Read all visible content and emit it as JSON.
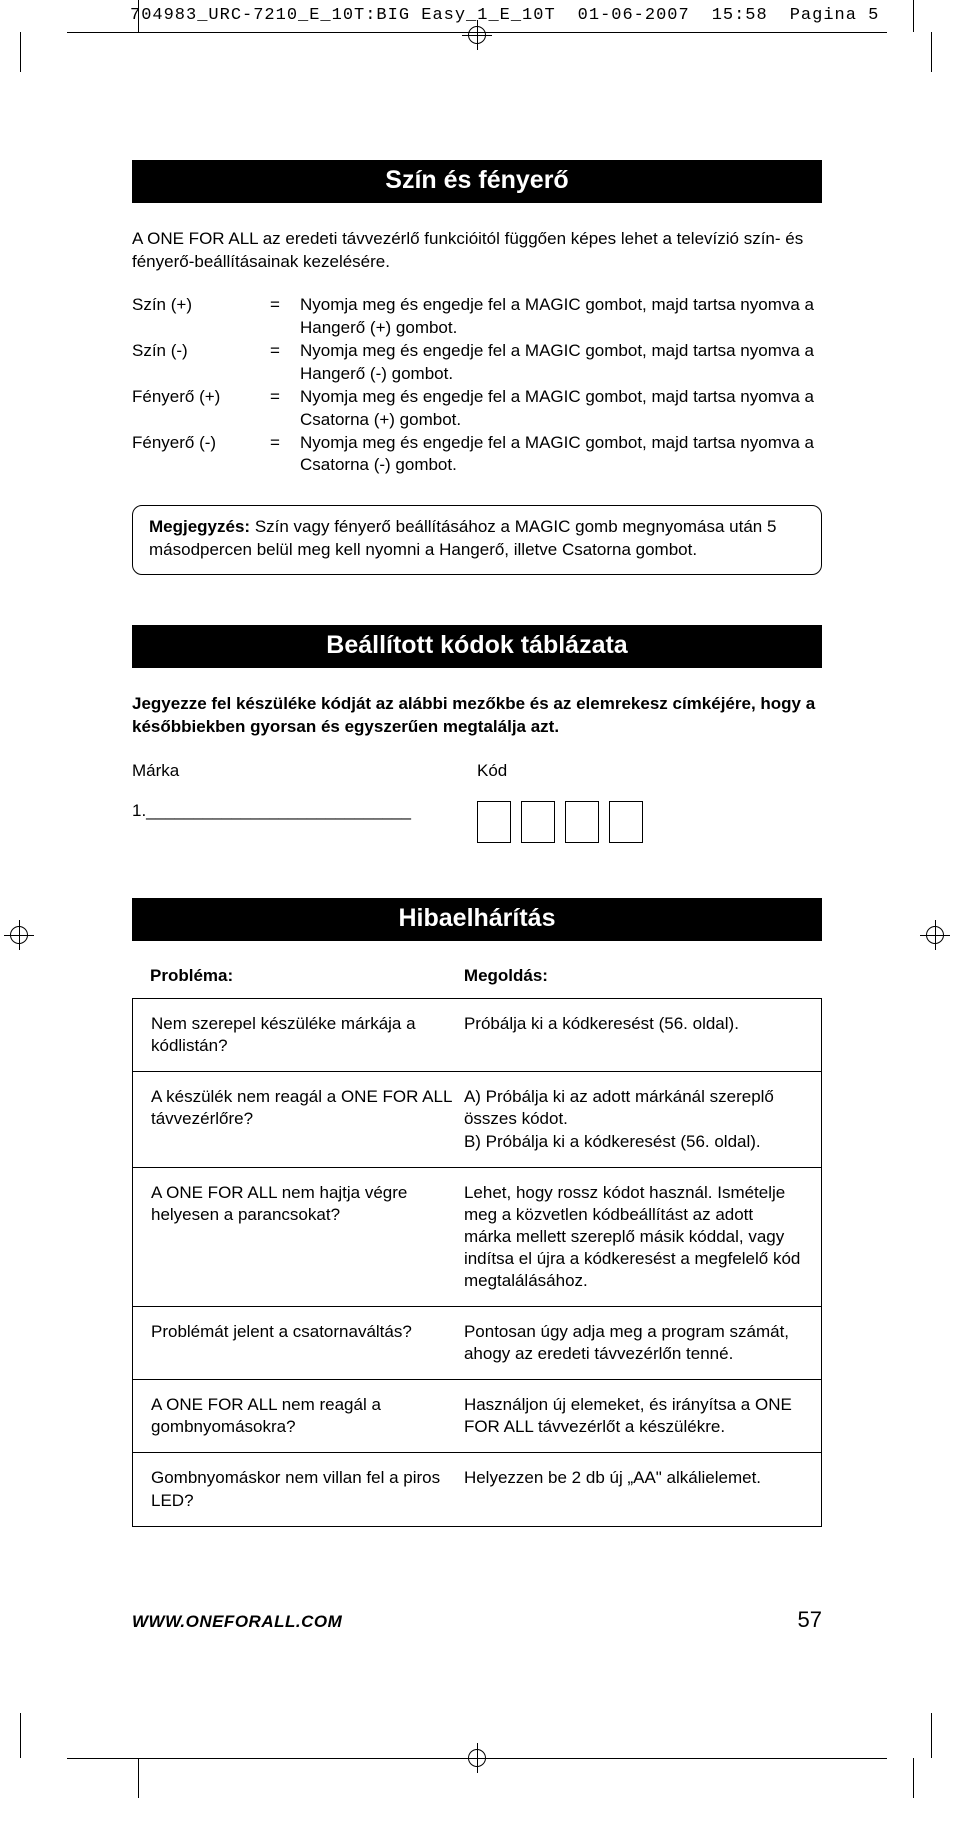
{
  "prepress": {
    "filename": "704983_URC-7210_E_10T:BIG Easy_1_E_10T",
    "date": "01-06-2007",
    "time": "15:58",
    "pagina": "Pagina 5"
  },
  "section1": {
    "title": "Szín és fényerő",
    "intro": "A ONE FOR ALL az eredeti távvezérlő funkcióitól függően képes lehet a televízió szín- és fényerő-beállításainak kezelésére.",
    "defs": [
      {
        "label": "Szín (+)",
        "eq": "=",
        "val": "Nyomja meg és engedje fel a MAGIC gombot, majd tartsa nyomva a Hangerő (+) gombot."
      },
      {
        "label": "Szín (-)",
        "eq": "=",
        "val": "Nyomja meg és engedje fel a MAGIC gombot, majd tartsa nyomva a Hangerő (-) gombot."
      },
      {
        "label": "Fényerő (+)",
        "eq": "=",
        "val": "Nyomja meg és engedje fel a MAGIC gombot, majd tartsa nyomva a Csatorna (+) gombot."
      },
      {
        "label": "Fényerő (-)",
        "eq": "=",
        "val": "Nyomja meg és engedje fel a MAGIC gombot, majd tartsa nyomva a Csatorna (-) gombot."
      }
    ],
    "note_label": "Megjegyzés:",
    "note_text": " Szín vagy fényerő beállításához a MAGIC gomb megnyomása után 5 másodpercen belül meg kell nyomni a Hangerő, illetve Csatorna gombot."
  },
  "section2": {
    "title": "Beállított kódok táblázata",
    "instruction": "Jegyezze fel készüléke kódját az alábbi mezőkbe és az elemrekesz címkéjére, hogy a későbbiekben gyorsan és egyszerűen megtalálja azt.",
    "brand_header": "Márka",
    "code_header": "Kód",
    "brand_line": "1.____________________________"
  },
  "section3": {
    "title": "Hibaelhárítás",
    "col1_header": "Probléma:",
    "col2_header": "Megoldás:",
    "rows": [
      {
        "p": "Nem szerepel készüléke márkája a kódlistán?",
        "s": "Próbálja ki a kódkeresést (56. oldal)."
      },
      {
        "p": "A készülék nem reagál a ONE FOR ALL távvezérlőre?",
        "s": "A) Próbálja ki az adott márkánál szereplő összes kódot.\nB) Próbálja ki a kódkeresést (56. oldal)."
      },
      {
        "p": "A ONE FOR ALL nem hajtja végre helyesen a parancsokat?",
        "s": "Lehet, hogy rossz kódot használ. Ismételje meg a közvetlen kódbeállítást az adott márka mellett szereplő másik kóddal, vagy indítsa el újra a kódkeresést a megfelelő kód megtalálásához."
      },
      {
        "p": "Problémát jelent a csatornaváltás?",
        "s": "Pontosan úgy adja meg a program számát, ahogy az eredeti távvezérlőn tenné."
      },
      {
        "p": "A ONE FOR ALL nem reagál a gombnyomásokra?",
        "s": "Használjon új elemeket, és irányítsa a ONE FOR ALL távvezérlőt a készülékre."
      },
      {
        "p": "Gombnyomáskor nem villan fel a piros LED?",
        "s": "Helyezzen be 2 db új „AA\" alkálielemet."
      }
    ]
  },
  "footer": {
    "url": "WWW.ONEFORALL.COM",
    "page": "57"
  },
  "colors": {
    "band_bg": "#000000",
    "band_fg": "#ffffff",
    "text": "#000000",
    "page_bg": "#ffffff"
  }
}
